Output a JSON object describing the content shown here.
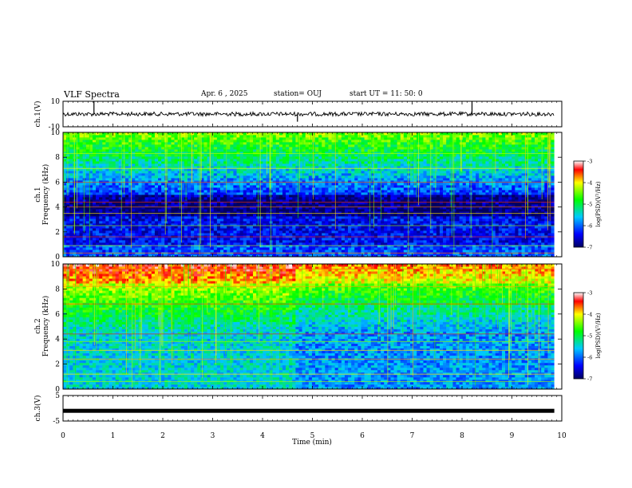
{
  "header": {
    "title": "VLF Spectra",
    "date": "Apr. 6 , 2025",
    "station": "station= OUJ",
    "start": "start UT = 11: 50: 0"
  },
  "chart_data": [
    {
      "type": "line",
      "ylabel": "ch.1(V)",
      "ylim": [
        -10,
        10
      ],
      "yticks": [
        "10",
        "-10"
      ],
      "xlim": [
        0,
        10
      ],
      "baseline": 0,
      "spikes": [
        {
          "x": 0.62,
          "y": 10
        },
        {
          "x": 4.7,
          "y": -6
        },
        {
          "x": 8.2,
          "y": 10
        }
      ]
    },
    {
      "type": "heatmap",
      "ylabel": "ch.1",
      "ylabel2": "Frequency (kHz)",
      "ylim": [
        0,
        10
      ],
      "yticks": [
        "0",
        "2",
        "4",
        "6",
        "8",
        "10"
      ],
      "xlim": [
        0,
        9.85
      ],
      "colorbar": {
        "label": "log(PSD)(V²/Hz)",
        "ticks": [
          "-3",
          "-4",
          "-5",
          "-6",
          "-7"
        ],
        "range": [
          -7,
          -3
        ]
      }
    },
    {
      "type": "heatmap",
      "ylabel": "ch.2",
      "ylabel2": "Frequency (kHz)",
      "ylim": [
        0,
        10
      ],
      "yticks": [
        "0",
        "2",
        "4",
        "6",
        "8",
        "10"
      ],
      "xlim": [
        0,
        9.85
      ],
      "colorbar": {
        "label": "log(PSD)(V²/Hz)",
        "ticks": [
          "-3",
          "-4",
          "-5",
          "-6",
          "-7"
        ],
        "range": [
          -7,
          -3
        ]
      }
    },
    {
      "type": "line",
      "ylabel": "ch.3(V)",
      "ylim": [
        -5,
        5
      ],
      "yticks": [
        "5",
        "-5"
      ],
      "xlim": [
        0,
        10
      ],
      "baseline": -1
    }
  ],
  "xaxis": {
    "label": "Time (min)",
    "ticks": [
      "0",
      "1",
      "2",
      "3",
      "4",
      "5",
      "6",
      "7",
      "8",
      "9",
      "10"
    ],
    "range": [
      0,
      10
    ]
  },
  "colors": {
    "low": "#000080",
    "mid": "#00ff00",
    "high": "#ff0000"
  }
}
